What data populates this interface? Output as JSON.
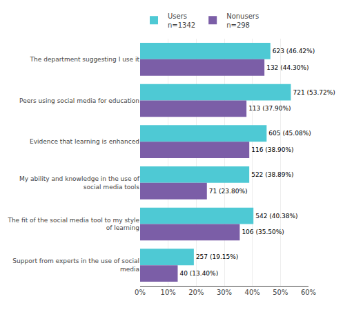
{
  "chart_data": {
    "type": "bar",
    "orientation": "horizontal",
    "categories": [
      "The department suggesting I use it",
      "Peers using social media for education",
      "Evidence that learning is enhanced",
      "My ability and knowledge in the use of\nsocial media tools",
      "The fit of the social media tool to my style\nof learning",
      "Support from experts in the use of social\nmedia"
    ],
    "series": [
      {
        "name": "Users\nn=1342",
        "color": "#4ec9d4",
        "values": [
          46.42,
          53.72,
          45.08,
          38.89,
          40.38,
          19.15
        ],
        "value_labels": [
          "623 (46.42%)",
          "721 (53.72%)",
          "605 (45.08%)",
          "522 (38.89%)",
          "542 (40.38%)",
          "257 (19.15%)"
        ]
      },
      {
        "name": "Nonusers\nn=298",
        "color": "#7b5ea7",
        "values": [
          44.3,
          37.9,
          38.9,
          23.8,
          35.5,
          13.4
        ],
        "value_labels": [
          "132 (44.30%)",
          "113 (37.90%)",
          "116 (38.90%)",
          "71 (23.80%)",
          "106 (35.50%)",
          "40 (13.40%)"
        ]
      }
    ],
    "xlim": [
      0,
      60
    ],
    "xticks": [
      {
        "value": 0,
        "label": "0%"
      },
      {
        "value": 10,
        "label": "10%"
      },
      {
        "value": 20,
        "label": "20%"
      },
      {
        "value": 30,
        "label": "30%"
      },
      {
        "value": 40,
        "label": "40%"
      },
      {
        "value": 50,
        "label": "50%"
      },
      {
        "value": 60,
        "label": "60%"
      }
    ],
    "grid": true,
    "data_labels": true,
    "legend": "top"
  }
}
